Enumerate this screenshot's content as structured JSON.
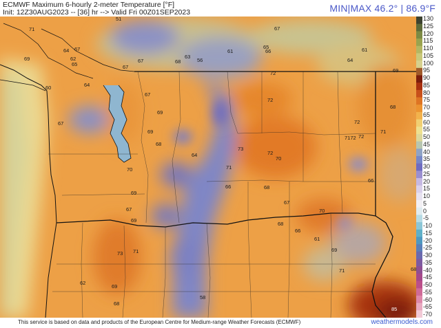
{
  "header": {
    "title": "ECMWF Maximum 6-hourly 2-meter Temperature [°F]",
    "init_line": "Init: 12Z30AUG2023 -- [36] hr --> Valid Fri 00Z01SEP2023",
    "minmax": "MIN|MAX 46.2° | 86.9°F"
  },
  "map": {
    "labels": [
      "51",
      "71",
      "67",
      "61",
      "65",
      "66",
      "64",
      "67",
      "69",
      "62",
      "63",
      "67",
      "68",
      "56",
      "65",
      "61",
      "64",
      "67",
      "69",
      "72",
      "64",
      "60",
      "67",
      "69",
      "72",
      "68",
      "72",
      "71",
      "7172",
      "72",
      "67",
      "69",
      "68",
      "73",
      "72",
      "70",
      "64",
      "70",
      "71",
      "66",
      "68",
      "66",
      "69",
      "67",
      "67",
      "70",
      "69",
      "68",
      "66",
      "61",
      "73",
      "71",
      "69",
      "71",
      "68",
      "62",
      "69",
      "68",
      "58",
      "85"
    ]
  },
  "colorbar": {
    "ticks": [
      "130",
      "125",
      "120",
      "115",
      "110",
      "105",
      "100",
      "95",
      "90",
      "85",
      "80",
      "75",
      "70",
      "65",
      "60",
      "55",
      "50",
      "45",
      "40",
      "35",
      "30",
      "25",
      "20",
      "15",
      "10",
      "5",
      "0",
      "-5",
      "-10",
      "-15",
      "-20",
      "-25",
      "-30",
      "-35",
      "-40",
      "-45",
      "-50",
      "-55",
      "-60",
      "-65",
      "-70"
    ],
    "colors": [
      "#3d4230",
      "#5e6a3a",
      "#7c8a44",
      "#9aa34f",
      "#b4b662",
      "#c9c87a",
      "#d6d08e",
      "#a05a2a",
      "#7a1d0c",
      "#a8300f",
      "#c8501a",
      "#de7423",
      "#ec9330",
      "#f2b24c",
      "#f1cf72",
      "#eee08f",
      "#dcd79a",
      "#b7c6b0",
      "#8fa3c5",
      "#7787c7",
      "#6e6cc0",
      "#9a8fd0",
      "#c5b8e2",
      "#d9d0ea",
      "#e7e2f0",
      "#f2f0f4",
      "#e0ecf0",
      "#b7dbe4",
      "#8cc6d6",
      "#5fb0c8",
      "#4f98c0",
      "#5a7fb8",
      "#6a69ae",
      "#7d5aa0",
      "#8f4f92",
      "#a5488a",
      "#bb4f8a",
      "#cf6a98",
      "#dd88aa",
      "#e8a9c0",
      "#f2cad6"
    ]
  },
  "footer": {
    "disclaimer": "This service is based on data and products of the European Centre for Medium-range Weather Forecasts (ECMWF)",
    "brand": "weathermodels.com"
  }
}
